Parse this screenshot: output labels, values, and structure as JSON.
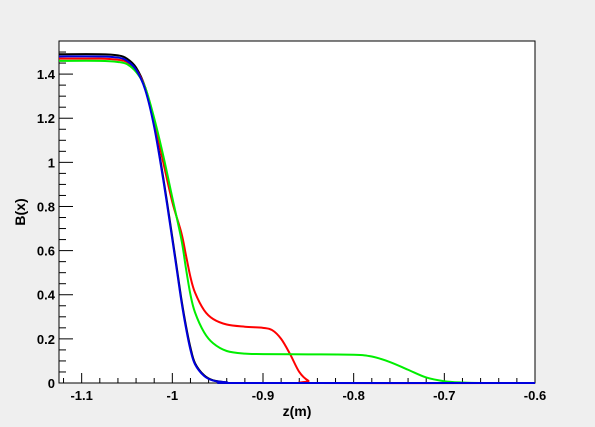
{
  "chart_data": {
    "type": "line",
    "xlabel": "z(m)",
    "ylabel": "B(x)",
    "xlim": [
      -1.125,
      -0.6
    ],
    "ylim": [
      0,
      1.55
    ],
    "grid": false,
    "x_ticks": [
      -1.1,
      -1.0,
      -0.9,
      -0.8,
      -0.7,
      -0.6
    ],
    "x_tick_labels": [
      "-1.1",
      "-1",
      "-0.9",
      "-0.8",
      "-0.7",
      "-0.6"
    ],
    "y_ticks": [
      0,
      0.2,
      0.4,
      0.6,
      0.8,
      1.0,
      1.2,
      1.4
    ],
    "y_tick_labels": [
      "0",
      "0.2",
      "0.4",
      "0.6",
      "0.8",
      "1",
      "1.2",
      "1.4"
    ],
    "series": [
      {
        "color": "#000000",
        "points": [
          [
            -1.125,
            1.49
          ],
          [
            -1.08,
            1.49
          ],
          [
            -1.06,
            1.485
          ],
          [
            -1.05,
            1.47
          ],
          [
            -1.04,
            1.43
          ],
          [
            -1.03,
            1.34
          ],
          [
            -1.02,
            1.17
          ],
          [
            -1.01,
            0.93
          ],
          [
            -1.0,
            0.66
          ],
          [
            -0.995,
            0.52
          ],
          [
            -0.99,
            0.38
          ],
          [
            -0.985,
            0.26
          ],
          [
            -0.98,
            0.16
          ],
          [
            -0.975,
            0.09
          ],
          [
            -0.965,
            0.035
          ],
          [
            -0.955,
            0.012
          ],
          [
            -0.94,
            0.003
          ],
          [
            -0.92,
            0.0
          ],
          [
            -0.6,
            0.0
          ]
        ]
      },
      {
        "color": "#ff0000",
        "points": [
          [
            -1.125,
            1.47
          ],
          [
            -1.08,
            1.47
          ],
          [
            -1.06,
            1.465
          ],
          [
            -1.05,
            1.455
          ],
          [
            -1.04,
            1.42
          ],
          [
            -1.03,
            1.34
          ],
          [
            -1.02,
            1.19
          ],
          [
            -1.01,
            1.0
          ],
          [
            -1.0,
            0.82
          ],
          [
            -0.99,
            0.68
          ],
          [
            -0.985,
            0.58
          ],
          [
            -0.98,
            0.48
          ],
          [
            -0.975,
            0.41
          ],
          [
            -0.965,
            0.33
          ],
          [
            -0.955,
            0.29
          ],
          [
            -0.94,
            0.265
          ],
          [
            -0.92,
            0.255
          ],
          [
            -0.9,
            0.25
          ],
          [
            -0.89,
            0.24
          ],
          [
            -0.88,
            0.2
          ],
          [
            -0.87,
            0.13
          ],
          [
            -0.86,
            0.05
          ],
          [
            -0.85,
            0.01
          ],
          [
            -0.84,
            0.0
          ],
          [
            -0.6,
            0.0
          ]
        ]
      },
      {
        "color": "#00ee00",
        "points": [
          [
            -1.125,
            1.46
          ],
          [
            -1.08,
            1.46
          ],
          [
            -1.06,
            1.455
          ],
          [
            -1.05,
            1.445
          ],
          [
            -1.04,
            1.41
          ],
          [
            -1.03,
            1.34
          ],
          [
            -1.02,
            1.2
          ],
          [
            -1.01,
            1.03
          ],
          [
            -1.0,
            0.84
          ],
          [
            -0.99,
            0.65
          ],
          [
            -0.985,
            0.52
          ],
          [
            -0.98,
            0.4
          ],
          [
            -0.975,
            0.32
          ],
          [
            -0.965,
            0.23
          ],
          [
            -0.955,
            0.18
          ],
          [
            -0.94,
            0.145
          ],
          [
            -0.92,
            0.133
          ],
          [
            -0.9,
            0.131
          ],
          [
            -0.85,
            0.13
          ],
          [
            -0.8,
            0.128
          ],
          [
            -0.78,
            0.12
          ],
          [
            -0.76,
            0.095
          ],
          [
            -0.74,
            0.06
          ],
          [
            -0.72,
            0.025
          ],
          [
            -0.7,
            0.008
          ],
          [
            -0.68,
            0.002
          ],
          [
            -0.66,
            0.0
          ],
          [
            -0.6,
            0.0
          ]
        ]
      },
      {
        "color": "#0000dd",
        "points": [
          [
            -1.125,
            1.48
          ],
          [
            -1.08,
            1.48
          ],
          [
            -1.06,
            1.475
          ],
          [
            -1.05,
            1.46
          ],
          [
            -1.04,
            1.42
          ],
          [
            -1.03,
            1.33
          ],
          [
            -1.02,
            1.16
          ],
          [
            -1.01,
            0.92
          ],
          [
            -1.0,
            0.65
          ],
          [
            -0.995,
            0.51
          ],
          [
            -0.99,
            0.37
          ],
          [
            -0.985,
            0.25
          ],
          [
            -0.98,
            0.15
          ],
          [
            -0.975,
            0.085
          ],
          [
            -0.965,
            0.032
          ],
          [
            -0.955,
            0.011
          ],
          [
            -0.94,
            0.003
          ],
          [
            -0.92,
            0.0
          ],
          [
            -0.6,
            0.0
          ]
        ]
      }
    ]
  }
}
